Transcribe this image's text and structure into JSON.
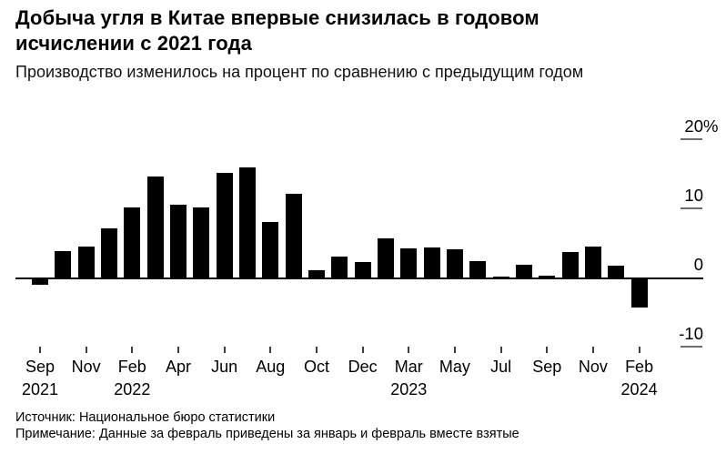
{
  "header": {
    "title_line1": "Добыча угля в Китае впервые снизилась в годовом",
    "title_line2": "исчислении с 2021 года",
    "subtitle": "Производство изменилось на процент по сравнению с предыдущим годом"
  },
  "footer": {
    "source": "Источник: Национальное бюро статистики",
    "note": "Примечание: Данные за февраль приведены за январь и февраль вместе взятые"
  },
  "chart_data": {
    "type": "bar",
    "title": "Добыча угля в Китае впервые снизилась в годовом исчислении с 2021 года",
    "subtitle": "Производство изменилось на процент по сравнению с предыдущим годом",
    "unit": "%",
    "bar_color": "#000000",
    "axis_dash_color": "#6f6f6f",
    "ylim": [
      -13,
      22
    ],
    "grid": "off",
    "legend_position": "none",
    "y_axis_side": "right",
    "categories": [
      "Sep 2021",
      "Oct 2021",
      "Nov 2021",
      "Dec 2021",
      "Feb 2022",
      "Mar 2022",
      "Apr 2022",
      "May 2022",
      "Jun 2022",
      "Jul 2022",
      "Aug 2022",
      "Sep 2022",
      "Oct 2022",
      "Nov 2022",
      "Dec 2022",
      "Feb 2023",
      "Mar 2023",
      "Apr 2023",
      "May 2023",
      "Jun 2023",
      "Jul 2023",
      "Aug 2023",
      "Sep 2023",
      "Oct 2023",
      "Nov 2023",
      "Dec 2023",
      "Feb 2024"
    ],
    "values": [
      -0.9,
      4.0,
      4.6,
      7.2,
      10.3,
      14.8,
      10.7,
      10.3,
      15.3,
      16.1,
      8.1,
      12.3,
      1.2,
      3.1,
      2.4,
      5.8,
      4.3,
      4.5,
      4.2,
      2.5,
      0.3,
      2.0,
      0.4,
      3.8,
      4.6,
      1.9,
      -4.2
    ],
    "yticks": [
      {
        "value": 20,
        "label": "20",
        "suffix": "%"
      },
      {
        "value": 10,
        "label": "10",
        "suffix": ""
      },
      {
        "value": 0,
        "label": "0",
        "suffix": ""
      },
      {
        "value": -10,
        "label": "-10",
        "suffix": ""
      }
    ],
    "xticks": [
      {
        "index": 0,
        "month": "Sep",
        "year": "2021"
      },
      {
        "index": 2,
        "month": "Nov",
        "year": ""
      },
      {
        "index": 4,
        "month": "Feb",
        "year": "2022"
      },
      {
        "index": 6,
        "month": "Apr",
        "year": ""
      },
      {
        "index": 8,
        "month": "Jun",
        "year": ""
      },
      {
        "index": 10,
        "month": "Aug",
        "year": ""
      },
      {
        "index": 12,
        "month": "Oct",
        "year": ""
      },
      {
        "index": 14,
        "month": "Dec",
        "year": ""
      },
      {
        "index": 16,
        "month": "Mar",
        "year": "2023"
      },
      {
        "index": 18,
        "month": "May",
        "year": ""
      },
      {
        "index": 20,
        "month": "Jul",
        "year": ""
      },
      {
        "index": 22,
        "month": "Sep",
        "year": ""
      },
      {
        "index": 24,
        "month": "Nov",
        "year": ""
      },
      {
        "index": 26,
        "month": "Feb",
        "year": "2024"
      }
    ]
  }
}
